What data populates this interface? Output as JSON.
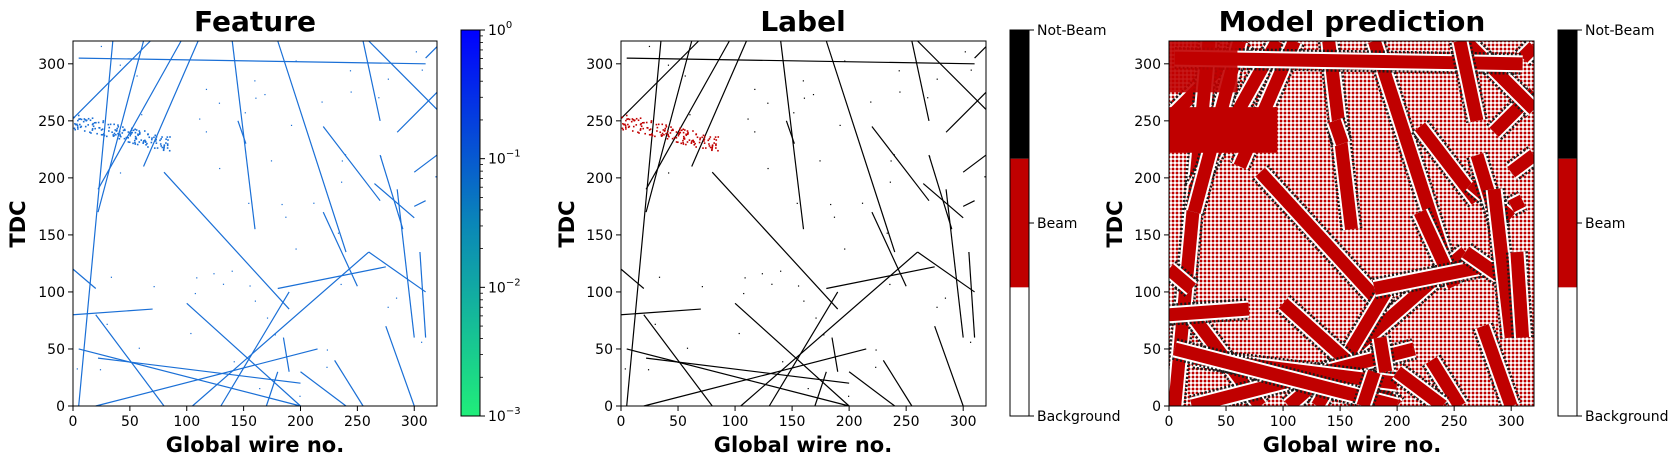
{
  "chart_data": [
    {
      "type": "heatmap",
      "title": "Feature",
      "xlabel": "Global wire no.",
      "ylabel": "TDC",
      "xlim": [
        0,
        320
      ],
      "ylim": [
        0,
        320
      ],
      "xticks": [
        "0",
        "50",
        "100",
        "150",
        "200",
        "250",
        "300"
      ],
      "yticks": [
        "0",
        "50",
        "100",
        "150",
        "200",
        "250",
        "300"
      ],
      "colorbar": {
        "scale": "log",
        "range": [
          0.001,
          1
        ],
        "ticks": [
          {
            "base": "10",
            "exp": "0"
          },
          {
            "base": "10",
            "exp": "−1"
          },
          {
            "base": "10",
            "exp": "−2"
          },
          {
            "base": "10",
            "exp": "−3"
          }
        ],
        "colors": [
          "#20ee7a",
          "#0070c0",
          "#0000ff"
        ]
      },
      "track_color": "#1a6fd6",
      "tracks": [
        {
          "x": [
            0,
            68
          ],
          "y": [
            252,
            320
          ]
        },
        {
          "x": [
            5,
            35
          ],
          "y": [
            0,
            320
          ]
        },
        {
          "x": [
            22,
            95
          ],
          "y": [
            190,
            320
          ]
        },
        {
          "x": [
            22,
            62
          ],
          "y": [
            170,
            320
          ]
        },
        {
          "x": [
            110,
            62
          ],
          "y": [
            320,
            210
          ]
        },
        {
          "x": [
            140,
            160
          ],
          "y": [
            320,
            155
          ]
        },
        {
          "x": [
            180,
            240
          ],
          "y": [
            320,
            135
          ]
        },
        {
          "x": [
            145,
            152
          ],
          "y": [
            250,
            230
          ]
        },
        {
          "x": [
            220,
            270
          ],
          "y": [
            245,
            180
          ]
        },
        {
          "x": [
            265,
            300
          ],
          "y": [
            195,
            165
          ]
        },
        {
          "x": [
            285,
            320
          ],
          "y": [
            240,
            275
          ]
        },
        {
          "x": [
            310,
            320
          ],
          "y": [
            305,
            315
          ]
        },
        {
          "x": [
            260,
            320
          ],
          "y": [
            320,
            260
          ]
        },
        {
          "x": [
            5,
            310
          ],
          "y": [
            305,
            300
          ]
        },
        {
          "x": [
            300,
            310
          ],
          "y": [
            175,
            180
          ]
        },
        {
          "x": [
            320,
            300
          ],
          "y": [
            220,
            205
          ]
        },
        {
          "x": [
            20,
            80
          ],
          "y": [
            80,
            0
          ]
        },
        {
          "x": [
            0,
            20
          ],
          "y": [
            120,
            103
          ]
        },
        {
          "x": [
            0,
            70
          ],
          "y": [
            80,
            85
          ]
        },
        {
          "x": [
            80,
            190
          ],
          "y": [
            205,
            85
          ]
        },
        {
          "x": [
            105,
            260
          ],
          "y": [
            0,
            135
          ]
        },
        {
          "x": [
            130,
            190
          ],
          "y": [
            0,
            100
          ]
        },
        {
          "x": [
            100,
            200
          ],
          "y": [
            90,
            0
          ]
        },
        {
          "x": [
            220,
            250
          ],
          "y": [
            170,
            105
          ]
        },
        {
          "x": [
            180,
            275
          ],
          "y": [
            103,
            122
          ]
        },
        {
          "x": [
            260,
            310
          ],
          "y": [
            135,
            100
          ]
        },
        {
          "x": [
            20,
            215
          ],
          "y": [
            0,
            50
          ]
        },
        {
          "x": [
            22,
            200
          ],
          "y": [
            42,
            20
          ]
        },
        {
          "x": [
            5,
            200
          ],
          "y": [
            50,
            0
          ]
        },
        {
          "x": [
            170,
            180
          ],
          "y": [
            0,
            30
          ]
        },
        {
          "x": [
            255,
            270
          ],
          "y": [
            320,
            250
          ]
        },
        {
          "x": [
            270,
            290
          ],
          "y": [
            220,
            155
          ]
        },
        {
          "x": [
            285,
            300
          ],
          "y": [
            190,
            60
          ]
        },
        {
          "x": [
            305,
            310
          ],
          "y": [
            135,
            60
          ]
        },
        {
          "x": [
            275,
            300
          ],
          "y": [
            70,
            0
          ]
        },
        {
          "x": [
            230,
            255
          ],
          "y": [
            40,
            0
          ]
        },
        {
          "x": [
            200,
            240
          ],
          "y": [
            30,
            0
          ]
        },
        {
          "x": [
            185,
            190
          ],
          "y": [
            60,
            30
          ]
        }
      ],
      "beam_cluster": {
        "x": [
          0,
          85
        ],
        "y": [
          232,
          256
        ]
      }
    },
    {
      "type": "heatmap",
      "title": "Label",
      "xlabel": "Global wire no.",
      "ylabel": "TDC",
      "xlim": [
        0,
        320
      ],
      "ylim": [
        0,
        320
      ],
      "xticks": [
        "0",
        "50",
        "100",
        "150",
        "200",
        "250",
        "300"
      ],
      "yticks": [
        "0",
        "50",
        "100",
        "150",
        "200",
        "250",
        "300"
      ],
      "colorbar": {
        "scale": "categorical",
        "categories": [
          "Background",
          "Beam",
          "Not-Beam"
        ],
        "colors": [
          "#ffffff",
          "#c00000",
          "#000000"
        ]
      }
    },
    {
      "type": "heatmap",
      "title": "Model prediction",
      "xlabel": "Global wire no.",
      "ylabel": "TDC",
      "xlim": [
        0,
        320
      ],
      "ylim": [
        0,
        320
      ],
      "xticks": [
        "0",
        "50",
        "100",
        "150",
        "200",
        "250",
        "300"
      ],
      "yticks": [
        "0",
        "50",
        "100",
        "150",
        "200",
        "250",
        "300"
      ],
      "colorbar": {
        "scale": "categorical",
        "categories": [
          "Background",
          "Beam",
          "Not-Beam"
        ],
        "colors": [
          "#ffffff",
          "#c00000",
          "#000000"
        ]
      },
      "background_fill": "#e0a0a0"
    }
  ]
}
